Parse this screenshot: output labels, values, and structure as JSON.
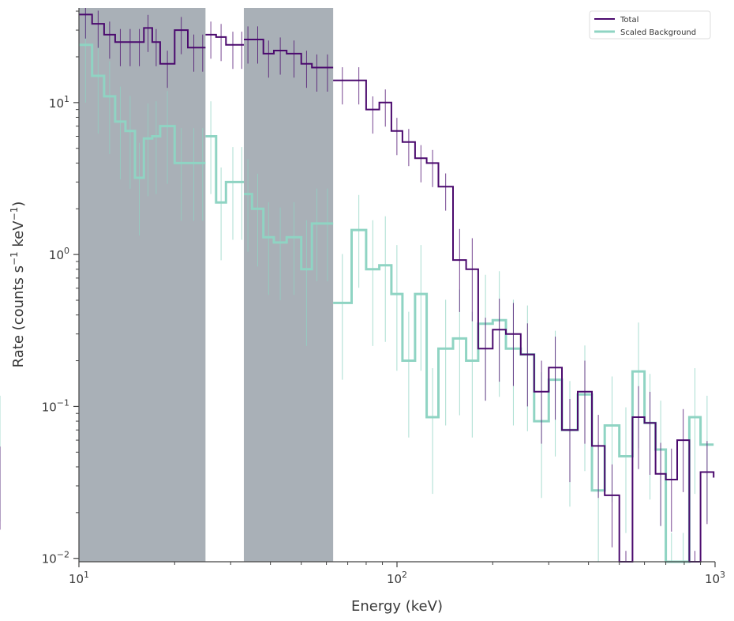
{
  "chart_data": {
    "type": "line",
    "xlabel": "Energy (keV)",
    "ylabel_parts": {
      "pre": "Rate (counts s",
      "sup1": "−1",
      "mid": " keV",
      "sup2": "−1",
      "post": ")"
    },
    "x_scale": "log",
    "y_scale": "log",
    "xlim": [
      10,
      1000
    ],
    "ylim": [
      0.0095,
      42
    ],
    "x_ticks": [
      {
        "value": 10,
        "base": "10",
        "exp": "1"
      },
      {
        "value": 100,
        "base": "10",
        "exp": "2"
      },
      {
        "value": 1000,
        "base": "10",
        "exp": "3"
      }
    ],
    "y_ticks": [
      {
        "value": 0.01,
        "base": "10",
        "exp": "−2"
      },
      {
        "value": 0.1,
        "base": "10",
        "exp": "−1"
      },
      {
        "value": 1,
        "base": "10",
        "exp": "0"
      },
      {
        "value": 10,
        "base": "10",
        "exp": "1"
      }
    ],
    "grid": false,
    "legend_position": "top-right",
    "excluded_ranges": [
      [
        10,
        25
      ],
      [
        33,
        63
      ]
    ],
    "colors": {
      "total": "#4b0a6e",
      "background": "#8fd4c3",
      "shade": "#a9b0b7"
    },
    "series": [
      {
        "name": "Total",
        "segments": [
          [
            10,
            11,
            12,
            13,
            14,
            15,
            16,
            17,
            18,
            20,
            22,
            24,
            25
          ],
          [
            25,
            27,
            29,
            32,
            33
          ],
          [
            33,
            35,
            38,
            41,
            45,
            50,
            54,
            58,
            63
          ],
          [
            63,
            72,
            80,
            88,
            96,
            104,
            114,
            124,
            135,
            150,
            165,
            180,
            200,
            220,
            245,
            270,
            300,
            330,
            370,
            410,
            450,
            500,
            550,
            600,
            650,
            700,
            760,
            830,
            900,
            990
          ]
        ],
        "values": [
          [
            38,
            33,
            28,
            25,
            25,
            25,
            31,
            25,
            18,
            30,
            23,
            23
          ],
          [
            28,
            27,
            24,
            24
          ],
          [
            26,
            26,
            21,
            22,
            21,
            18,
            17,
            17
          ],
          [
            14,
            14,
            9,
            10,
            6.5,
            5.5,
            4.3,
            4,
            2.8,
            0.92,
            0.8,
            0.24,
            0.32,
            0.3,
            0.22,
            0.125,
            0.18,
            0.07,
            0.125,
            0.055,
            0.026,
            0.007,
            0.085,
            0.078,
            0.036,
            0.033,
            0.06,
            0.007,
            0.037,
            0.034
          ]
        ]
      },
      {
        "name": "Scaled  Background",
        "segments": [
          [
            10,
            11,
            12,
            13,
            14,
            15,
            16,
            17,
            18,
            20,
            22,
            24,
            25
          ],
          [
            25,
            27,
            29,
            32,
            33
          ],
          [
            33,
            35,
            38,
            41,
            45,
            50,
            54,
            58,
            63
          ],
          [
            63,
            72,
            80,
            88,
            96,
            104,
            114,
            124,
            135,
            150,
            165,
            180,
            200,
            220,
            245,
            270,
            300,
            330,
            370,
            410,
            450,
            500,
            550,
            600,
            650,
            700,
            760,
            830,
            900,
            990
          ]
        ],
        "values": [
          [
            24,
            15,
            11,
            7.5,
            6.5,
            3.2,
            5.8,
            6,
            7,
            4,
            4,
            4
          ],
          [
            6,
            2.2,
            3,
            3
          ],
          [
            2.5,
            2,
            1.3,
            1.2,
            1.3,
            0.8,
            1.6,
            1.6
          ],
          [
            0.48,
            1.45,
            0.8,
            0.85,
            0.55,
            0.2,
            0.55,
            0.085,
            0.24,
            0.28,
            0.2,
            0.35,
            0.37,
            0.24,
            0.22,
            0.08,
            0.15,
            0.07,
            0.12,
            0.028,
            0.075,
            0.047,
            0.17,
            0.078,
            0.052,
            0.007,
            0.007,
            0.085,
            0.056,
            0.056
          ]
        ]
      }
    ]
  }
}
